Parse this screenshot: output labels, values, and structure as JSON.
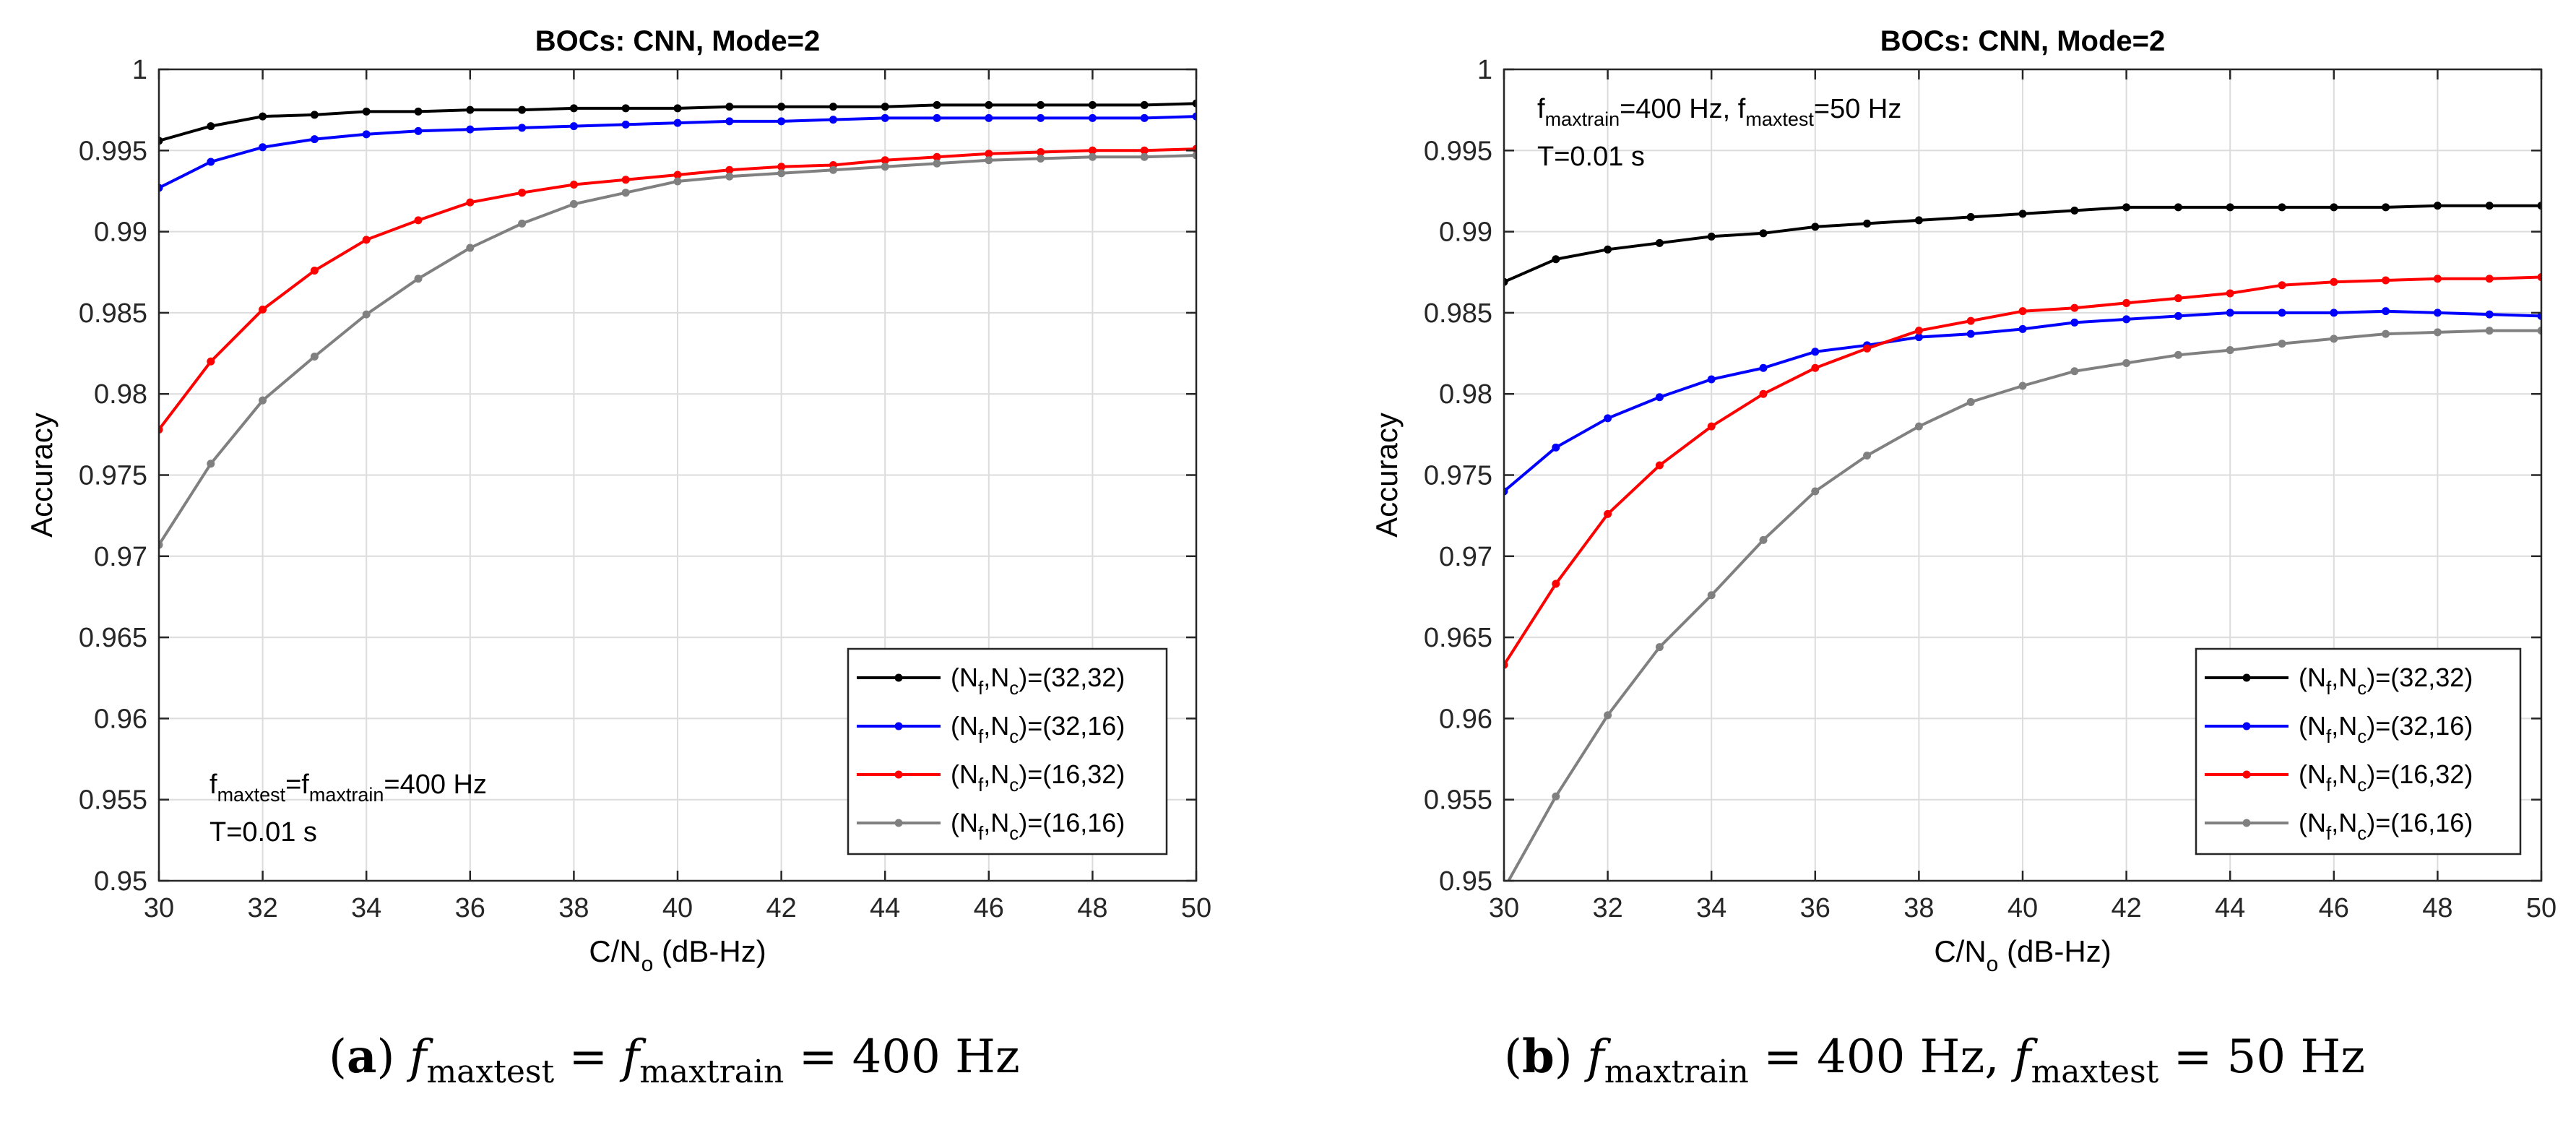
{
  "figure": {
    "panels": [
      {
        "caption_tag": "(a)",
        "caption_parts": [
          "f",
          "maxtest",
          " = ",
          "f",
          "maxtrain",
          " = 400 Hz"
        ]
      },
      {
        "caption_tag": "(b)",
        "caption_parts": [
          "f",
          "maxtrain",
          " = 400 Hz, ",
          "f",
          "maxtest",
          " = 50 Hz"
        ]
      }
    ]
  },
  "chart_data": [
    {
      "type": "line",
      "title": "BOCs: CNN, Mode=2",
      "xlabel": "C/N",
      "xlabel_sub": "o",
      "xlabel_unit": " (dB-Hz)",
      "ylabel": "Accuracy",
      "xlim": [
        30,
        50
      ],
      "ylim": [
        0.95,
        1
      ],
      "xticks": [
        30,
        32,
        34,
        36,
        38,
        40,
        42,
        44,
        46,
        48,
        50
      ],
      "xtick_labels": [
        "30",
        "32",
        "34",
        "36",
        "38",
        "40",
        "42",
        "44",
        "46",
        "48",
        "50"
      ],
      "yticks": [
        0.95,
        0.955,
        0.96,
        0.965,
        0.97,
        0.975,
        0.98,
        0.985,
        0.99,
        0.995,
        1
      ],
      "ytick_labels": [
        "0.95",
        "0.955",
        "0.96",
        "0.965",
        "0.97",
        "0.975",
        "0.98",
        "0.985",
        "0.99",
        "0.995",
        "1"
      ],
      "grid": true,
      "legend_position": "bottom-right",
      "annotation": {
        "position": "bottom-left",
        "lines": [
          [
            [
              "f",
              ""
            ],
            [
              "maxtest",
              "sub"
            ],
            [
              "=f",
              ""
            ],
            [
              "maxtrain",
              "sub"
            ],
            [
              "=400 Hz",
              ""
            ]
          ],
          [
            [
              "T=0.01 s",
              ""
            ]
          ]
        ]
      },
      "x": [
        30,
        31,
        32,
        33,
        34,
        35,
        36,
        37,
        38,
        39,
        40,
        41,
        42,
        43,
        44,
        45,
        46,
        47,
        48,
        49,
        50
      ],
      "series": [
        {
          "name": "(N_f,N_c)=(32,32)",
          "legend_parts": [
            [
              "(N",
              ""
            ],
            [
              "f",
              "sub"
            ],
            [
              ",N",
              ""
            ],
            [
              "c",
              "sub"
            ],
            [
              ")=(32,32)",
              ""
            ]
          ],
          "color": "#000000",
          "values": [
            0.9956,
            0.9965,
            0.9971,
            0.9972,
            0.9974,
            0.9974,
            0.9975,
            0.9975,
            0.9976,
            0.9976,
            0.9976,
            0.9977,
            0.9977,
            0.9977,
            0.9977,
            0.9978,
            0.9978,
            0.9978,
            0.9978,
            0.9978,
            0.9979
          ]
        },
        {
          "name": "(N_f,N_c)=(32,16)",
          "legend_parts": [
            [
              "(N",
              ""
            ],
            [
              "f",
              "sub"
            ],
            [
              ",N",
              ""
            ],
            [
              "c",
              "sub"
            ],
            [
              ")=(32,16)",
              ""
            ]
          ],
          "color": "#0000ff",
          "values": [
            0.9927,
            0.9943,
            0.9952,
            0.9957,
            0.996,
            0.9962,
            0.9963,
            0.9964,
            0.9965,
            0.9966,
            0.9967,
            0.9968,
            0.9968,
            0.9969,
            0.997,
            0.997,
            0.997,
            0.997,
            0.997,
            0.997,
            0.9971
          ]
        },
        {
          "name": "(N_f,N_c)=(16,32)",
          "legend_parts": [
            [
              "(N",
              ""
            ],
            [
              "f",
              "sub"
            ],
            [
              ",N",
              ""
            ],
            [
              "c",
              "sub"
            ],
            [
              ")=(16,32)",
              ""
            ]
          ],
          "color": "#ff0000",
          "values": [
            0.9778,
            0.982,
            0.9852,
            0.9876,
            0.9895,
            0.9907,
            0.9918,
            0.9924,
            0.9929,
            0.9932,
            0.9935,
            0.9938,
            0.994,
            0.9941,
            0.9944,
            0.9946,
            0.9948,
            0.9949,
            0.995,
            0.995,
            0.9951
          ]
        },
        {
          "name": "(N_f,N_c)=(16,16)",
          "legend_parts": [
            [
              "(N",
              ""
            ],
            [
              "f",
              "sub"
            ],
            [
              ",N",
              ""
            ],
            [
              "c",
              "sub"
            ],
            [
              ")=(16,16)",
              ""
            ]
          ],
          "color": "#808080",
          "values": [
            0.9707,
            0.9757,
            0.9796,
            0.9823,
            0.9849,
            0.9871,
            0.989,
            0.9905,
            0.9917,
            0.9924,
            0.9931,
            0.9934,
            0.9936,
            0.9938,
            0.994,
            0.9942,
            0.9944,
            0.9945,
            0.9946,
            0.9946,
            0.9947
          ]
        }
      ]
    },
    {
      "type": "line",
      "title": "BOCs: CNN, Mode=2",
      "xlabel": "C/N",
      "xlabel_sub": "o",
      "xlabel_unit": " (dB-Hz)",
      "ylabel": "Accuracy",
      "xlim": [
        30,
        50
      ],
      "ylim": [
        0.95,
        1
      ],
      "xticks": [
        30,
        32,
        34,
        36,
        38,
        40,
        42,
        44,
        46,
        48,
        50
      ],
      "xtick_labels": [
        "30",
        "32",
        "34",
        "36",
        "38",
        "40",
        "42",
        "44",
        "46",
        "48",
        "50"
      ],
      "yticks": [
        0.95,
        0.955,
        0.96,
        0.965,
        0.97,
        0.975,
        0.98,
        0.985,
        0.99,
        0.995,
        1
      ],
      "ytick_labels": [
        "0.95",
        "0.955",
        "0.96",
        "0.965",
        "0.97",
        "0.975",
        "0.98",
        "0.985",
        "0.99",
        "0.995",
        "1"
      ],
      "grid": true,
      "legend_position": "bottom-right",
      "annotation": {
        "position": "top-left",
        "lines": [
          [
            [
              "f",
              ""
            ],
            [
              "maxtrain",
              "sub"
            ],
            [
              "=400 Hz, f",
              ""
            ],
            [
              "maxtest",
              "sub"
            ],
            [
              "=50 Hz",
              ""
            ]
          ],
          [
            [
              "T=0.01 s",
              ""
            ]
          ]
        ]
      },
      "x": [
        30,
        31,
        32,
        33,
        34,
        35,
        36,
        37,
        38,
        39,
        40,
        41,
        42,
        43,
        44,
        45,
        46,
        47,
        48,
        49,
        50
      ],
      "series": [
        {
          "name": "(N_f,N_c)=(32,32)",
          "legend_parts": [
            [
              "(N",
              ""
            ],
            [
              "f",
              "sub"
            ],
            [
              ",N",
              ""
            ],
            [
              "c",
              "sub"
            ],
            [
              ")=(32,32)",
              ""
            ]
          ],
          "color": "#000000",
          "values": [
            0.9869,
            0.9883,
            0.9889,
            0.9893,
            0.9897,
            0.9899,
            0.9903,
            0.9905,
            0.9907,
            0.9909,
            0.9911,
            0.9913,
            0.9915,
            0.9915,
            0.9915,
            0.9915,
            0.9915,
            0.9915,
            0.9916,
            0.9916,
            0.9916
          ]
        },
        {
          "name": "(N_f,N_c)=(32,16)",
          "legend_parts": [
            [
              "(N",
              ""
            ],
            [
              "f",
              "sub"
            ],
            [
              ",N",
              ""
            ],
            [
              "c",
              "sub"
            ],
            [
              ")=(32,16)",
              ""
            ]
          ],
          "color": "#0000ff",
          "values": [
            0.974,
            0.9767,
            0.9785,
            0.9798,
            0.9809,
            0.9816,
            0.9826,
            0.983,
            0.9835,
            0.9837,
            0.984,
            0.9844,
            0.9846,
            0.9848,
            0.985,
            0.985,
            0.985,
            0.9851,
            0.985,
            0.9849,
            0.9848
          ]
        },
        {
          "name": "(N_f,N_c)=(16,32)",
          "legend_parts": [
            [
              "(N",
              ""
            ],
            [
              "f",
              "sub"
            ],
            [
              ",N",
              ""
            ],
            [
              "c",
              "sub"
            ],
            [
              ")=(16,32)",
              ""
            ]
          ],
          "color": "#ff0000",
          "values": [
            0.9633,
            0.9683,
            0.9726,
            0.9756,
            0.978,
            0.98,
            0.9816,
            0.9828,
            0.9839,
            0.9845,
            0.9851,
            0.9853,
            0.9856,
            0.9859,
            0.9862,
            0.9867,
            0.9869,
            0.987,
            0.9871,
            0.9871,
            0.9872
          ]
        },
        {
          "name": "(N_f,N_c)=(16,16)",
          "legend_parts": [
            [
              "(N",
              ""
            ],
            [
              "f",
              "sub"
            ],
            [
              ",N",
              ""
            ],
            [
              "c",
              "sub"
            ],
            [
              ")=(16,16)",
              ""
            ]
          ],
          "color": "#808080",
          "values": [
            0.9495,
            0.9552,
            0.9602,
            0.9644,
            0.9676,
            0.971,
            0.974,
            0.9762,
            0.978,
            0.9795,
            0.9805,
            0.9814,
            0.9819,
            0.9824,
            0.9827,
            0.9831,
            0.9834,
            0.9837,
            0.9838,
            0.9839,
            0.9839
          ]
        }
      ]
    }
  ]
}
